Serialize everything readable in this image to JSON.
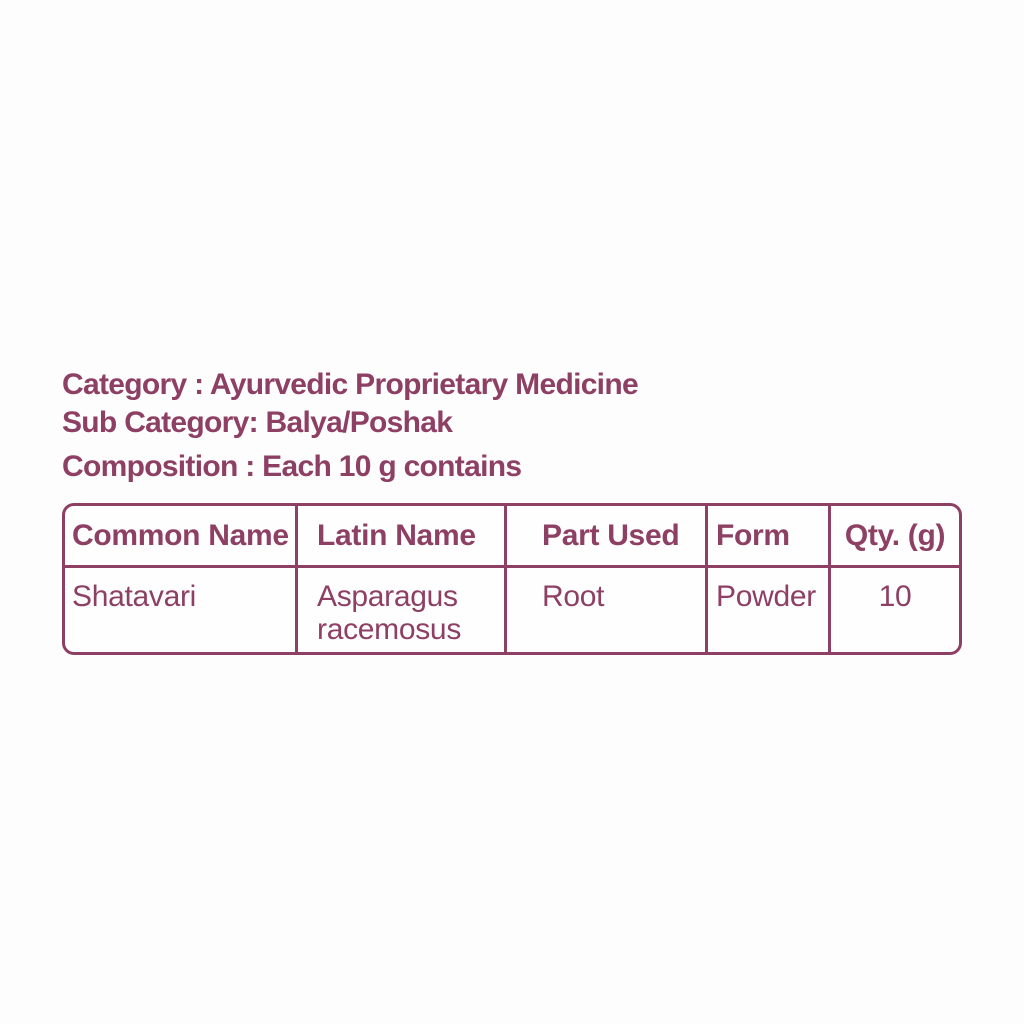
{
  "page": {
    "background": "#fdfdfd",
    "accent_color": "#8e3f64"
  },
  "product_info": {
    "category": "Category : Ayurvedic Proprietary Medicine",
    "sub_category": "Sub Category: Balya/Poshak",
    "composition": "Composition : Each 10 g contains"
  },
  "composition_table": {
    "headers": [
      "Common Name",
      "Latin Name",
      "Part Used",
      "Form",
      "Qty. (g)"
    ],
    "rows": [
      {
        "common_name": "Shatavari",
        "latin_name": "Asparagus racemosus",
        "part_used": "Root",
        "form": "Powder",
        "qty_g": "10"
      }
    ]
  }
}
